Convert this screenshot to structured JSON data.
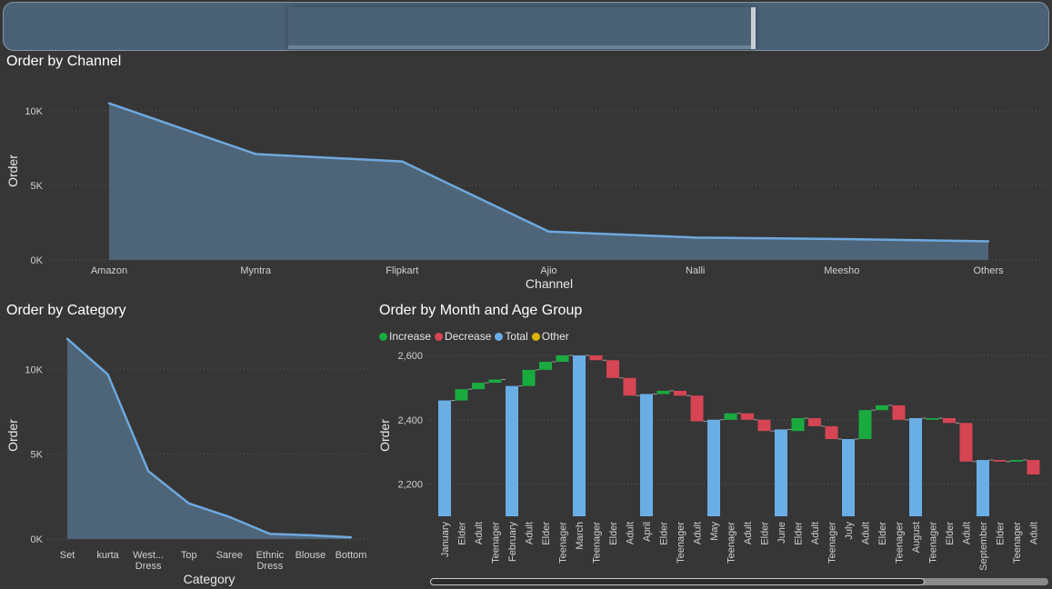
{
  "colors": {
    "area_fill": "#4e6478",
    "area_line": "#6ea9de",
    "increase": "#1aab40",
    "decrease": "#d64553",
    "total": "#6aaee6",
    "other": "#d9b300",
    "axis_text": "#d0d0d0",
    "grid": "#5a5a5a"
  },
  "titles": {
    "channel": "Order by Channel",
    "category": "Order by Category",
    "month": "Order by Month and Age Group"
  },
  "legend": {
    "increase": "Increase",
    "decrease": "Decrease",
    "total": "Total",
    "other": "Other"
  },
  "chart_data": [
    {
      "type": "area",
      "title": "Order by Channel",
      "xlabel": "Channel",
      "ylabel": "Order",
      "ylim": [
        0,
        10600
      ],
      "yticks": [
        0,
        5000,
        10000
      ],
      "ytick_labels": [
        "0K",
        "5K",
        "10K"
      ],
      "grid": true,
      "categories": [
        "Amazon",
        "Myntra",
        "Flipkart",
        "Ajio",
        "Nalli",
        "Meesho",
        "Others"
      ],
      "values": [
        10500,
        7100,
        6600,
        1900,
        1500,
        1400,
        1250
      ]
    },
    {
      "type": "area",
      "title": "Order by Category",
      "xlabel": "Category",
      "ylabel": "Order",
      "ylim": [
        0,
        12000
      ],
      "yticks": [
        0,
        5000,
        10000
      ],
      "ytick_labels": [
        "0K",
        "5K",
        "10K"
      ],
      "grid": true,
      "categories": [
        [
          "Set"
        ],
        [
          "kurta"
        ],
        [
          "West...",
          "Dress"
        ],
        [
          "Top"
        ],
        [
          "Saree"
        ],
        [
          "Ethnic",
          "Dress"
        ],
        [
          "Blouse"
        ],
        [
          "Bottom"
        ]
      ],
      "values": [
        11800,
        9700,
        4000,
        2100,
        1300,
        300,
        220,
        100
      ]
    },
    {
      "type": "waterfall",
      "title": "Order by Month and Age Group",
      "ylabel": "Order",
      "ylim": [
        2100,
        2600
      ],
      "yticks": [
        2200,
        2400,
        2600
      ],
      "ytick_labels": [
        "2,200",
        "2,400",
        "2,600"
      ],
      "grid": true,
      "legend": [
        "Increase",
        "Decrease",
        "Total",
        "Other"
      ],
      "categories": [
        "January",
        "Elder",
        "Adult",
        "Teenager",
        "February",
        "Adult",
        "Elder",
        "Teenager",
        "March",
        "Teenager",
        "Elder",
        "Adult",
        "April",
        "Elder",
        "Teenager",
        "Adult",
        "May",
        "Teenager",
        "Adult",
        "Elder",
        "June",
        "Elder",
        "Adult",
        "Teenager",
        "July",
        "Adult",
        "Elder",
        "Teenager",
        "August",
        "Teenager",
        "Elder",
        "Adult",
        "September",
        "Elder",
        "Teenager",
        "Adult"
      ],
      "kinds": [
        "total",
        "increase",
        "increase",
        "increase",
        "total",
        "increase",
        "increase",
        "increase",
        "total",
        "decrease",
        "decrease",
        "decrease",
        "total",
        "increase",
        "decrease",
        "decrease",
        "total",
        "increase",
        "decrease",
        "decrease",
        "total",
        "increase",
        "decrease",
        "decrease",
        "total",
        "increase",
        "increase",
        "decrease",
        "total",
        "increase",
        "decrease",
        "decrease",
        "total",
        "decrease",
        "increase",
        "decrease"
      ],
      "start": [
        2100,
        2460,
        2495,
        2515,
        2100,
        2505,
        2555,
        2580,
        2100,
        2600,
        2585,
        2530,
        2100,
        2480,
        2490,
        2475,
        2100,
        2400,
        2420,
        2400,
        2100,
        2365,
        2405,
        2380,
        2100,
        2340,
        2430,
        2445,
        2100,
        2400,
        2405,
        2390,
        2100,
        2275,
        2270,
        2275
      ],
      "end": [
        2460,
        2495,
        2515,
        2525,
        2505,
        2555,
        2580,
        2600,
        2600,
        2585,
        2530,
        2475,
        2480,
        2490,
        2475,
        2395,
        2400,
        2420,
        2400,
        2365,
        2370,
        2405,
        2380,
        2340,
        2340,
        2430,
        2445,
        2400,
        2405,
        2405,
        2390,
        2270,
        2275,
        2270,
        2275,
        2230
      ]
    }
  ]
}
